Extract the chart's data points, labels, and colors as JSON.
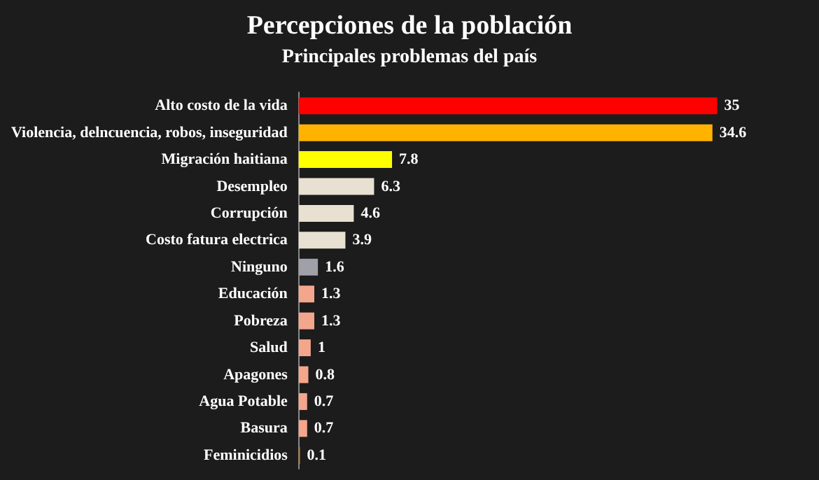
{
  "chart_data": {
    "type": "bar",
    "orientation": "horizontal",
    "title": "Percepciones de la población",
    "subtitle": "Principales problemas del país",
    "categories": [
      "Alto costo de la vida",
      "Violencia, delncuencia, robos, inseguridad",
      "Migración haitiana",
      "Desempleo",
      "Corrupción",
      "Costo fatura electrica",
      "Ninguno",
      "Educación",
      "Pobreza",
      "Salud",
      "Apagones",
      "Agua Potable",
      "Basura",
      "Feminicidios"
    ],
    "values": [
      35,
      34.6,
      7.8,
      6.3,
      4.6,
      3.9,
      1.6,
      1.3,
      1.3,
      1,
      0.8,
      0.7,
      0.7,
      0.1
    ],
    "colors": [
      "#ff0000",
      "#ffb300",
      "#ffff00",
      "#e8e0d0",
      "#e8e0d0",
      "#e8e0d0",
      "#a0a0a8",
      "#f4a68c",
      "#f4a68c",
      "#f4a68c",
      "#f4a68c",
      "#f4a68c",
      "#f4a68c",
      "#c8801a"
    ],
    "data_labels": true
  }
}
